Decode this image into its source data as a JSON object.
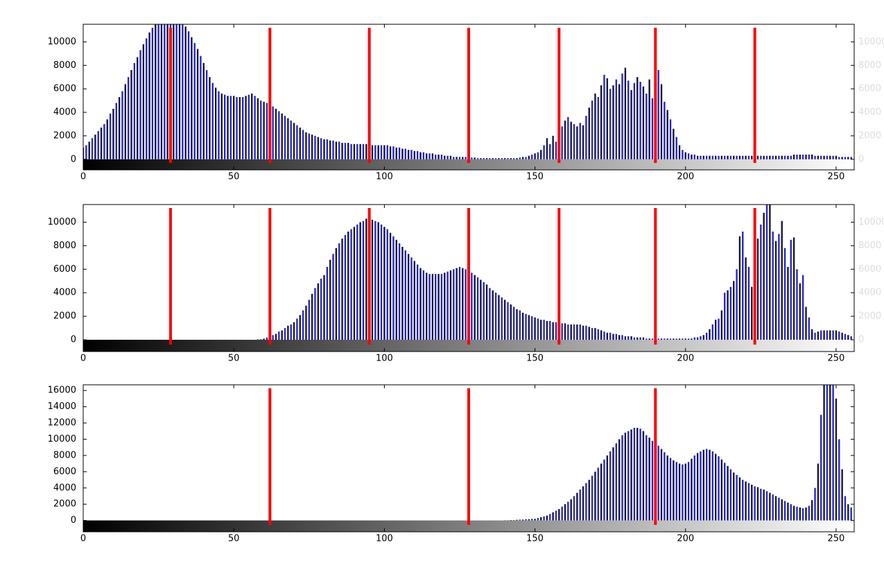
{
  "chart_data": [
    {
      "type": "bar",
      "xlim": [
        0,
        256
      ],
      "ylim": [
        -900,
        11500
      ],
      "xticks": [
        0,
        50,
        100,
        150,
        200,
        250
      ],
      "yticks": [
        0,
        2000,
        4000,
        6000,
        8000,
        10000
      ],
      "colors": [
        "#15153f",
        "#2626c8"
      ],
      "markers": [
        29,
        62,
        95,
        128,
        158,
        190,
        223
      ],
      "marker_color": "#ff0000",
      "values": [
        1000,
        1200,
        1500,
        1800,
        2100,
        2400,
        2700,
        3000,
        3400,
        3900,
        4300,
        4800,
        5300,
        5800,
        6400,
        7000,
        7600,
        8200,
        8700,
        9300,
        9800,
        10300,
        10800,
        11200,
        11500,
        11500,
        11500,
        11500,
        11500,
        11500,
        11500,
        11500,
        11500,
        11500,
        11300,
        10900,
        10400,
        9900,
        9400,
        8800,
        8200,
        7600,
        7000,
        6500,
        6100,
        5800,
        5600,
        5500,
        5400,
        5400,
        5400,
        5300,
        5300,
        5300,
        5400,
        5500,
        5600,
        5400,
        5200,
        5000,
        4900,
        4800,
        4700,
        4500,
        4300,
        4100,
        3900,
        3700,
        3500,
        3300,
        3100,
        2900,
        2700,
        2500,
        2300,
        2200,
        2100,
        2000,
        1900,
        1800,
        1700,
        1700,
        1600,
        1600,
        1500,
        1500,
        1400,
        1400,
        1400,
        1300,
        1300,
        1300,
        1300,
        1300,
        1300,
        1200,
        1200,
        1200,
        1200,
        1200,
        1200,
        1200,
        1100,
        1100,
        1000,
        1000,
        900,
        900,
        800,
        800,
        700,
        700,
        600,
        600,
        500,
        500,
        500,
        400,
        400,
        400,
        300,
        300,
        300,
        200,
        200,
        200,
        200,
        200,
        200,
        150,
        150,
        100,
        100,
        100,
        100,
        100,
        100,
        100,
        100,
        100,
        100,
        100,
        100,
        100,
        100,
        150,
        200,
        200,
        300,
        400,
        500,
        600,
        800,
        1200,
        1800,
        1300,
        2000,
        1500,
        2400,
        2800,
        3300,
        3600,
        3200,
        3000,
        2800,
        3100,
        2900,
        3700,
        4400,
        5000,
        5600,
        5300,
        6300,
        7200,
        6900,
        6000,
        6300,
        6800,
        6400,
        7300,
        7800,
        6700,
        5900,
        6500,
        7000,
        6600,
        6200,
        5600,
        6800,
        5200,
        7800,
        7600,
        6400,
        4900,
        4200,
        3400,
        2600,
        1900,
        1200,
        800,
        600,
        500,
        400,
        400,
        300,
        300,
        300,
        300,
        300,
        300,
        300,
        300,
        300,
        300,
        300,
        300,
        300,
        300,
        300,
        300,
        300,
        300,
        300,
        300,
        300,
        300,
        300,
        300,
        300,
        300,
        300,
        300,
        300,
        300,
        300,
        300,
        400,
        400,
        400,
        400,
        400,
        400,
        400,
        300,
        300,
        300,
        300,
        300,
        300,
        300,
        300,
        200,
        200,
        200,
        200,
        200
      ]
    },
    {
      "type": "bar",
      "xlim": [
        0,
        256
      ],
      "ylim": [
        -1000,
        11500
      ],
      "xticks": [
        0,
        50,
        100,
        150,
        200,
        250
      ],
      "yticks": [
        0,
        2000,
        4000,
        6000,
        8000,
        10000
      ],
      "colors": [
        "#15153f",
        "#2626c8"
      ],
      "markers": [
        29,
        62,
        95,
        128,
        158,
        190,
        223
      ],
      "marker_color": "#ff0000",
      "values": [
        0,
        0,
        0,
        0,
        0,
        0,
        0,
        0,
        0,
        0,
        0,
        0,
        0,
        0,
        0,
        0,
        0,
        0,
        0,
        0,
        0,
        0,
        0,
        0,
        0,
        0,
        0,
        0,
        0,
        0,
        0,
        0,
        0,
        0,
        0,
        0,
        0,
        0,
        0,
        0,
        0,
        0,
        0,
        0,
        0,
        0,
        0,
        0,
        0,
        0,
        0,
        0,
        0,
        0,
        0,
        0,
        0,
        0,
        30,
        50,
        100,
        200,
        300,
        400,
        500,
        700,
        800,
        1000,
        1200,
        1300,
        1500,
        1800,
        2100,
        2500,
        2900,
        3400,
        3900,
        4400,
        4800,
        5200,
        5500,
        6200,
        6800,
        7300,
        7800,
        8200,
        8600,
        8900,
        9200,
        9400,
        9600,
        9800,
        10000,
        10100,
        10300,
        10300,
        10200,
        10100,
        10000,
        9800,
        9600,
        9400,
        9100,
        8800,
        8500,
        8200,
        7900,
        7600,
        7300,
        7000,
        6700,
        6400,
        6100,
        5900,
        5700,
        5600,
        5600,
        5600,
        5600,
        5600,
        5700,
        5800,
        5900,
        6000,
        6100,
        6200,
        6100,
        6000,
        5800,
        5700,
        5500,
        5300,
        5100,
        4900,
        4700,
        4400,
        4200,
        4000,
        3800,
        3600,
        3400,
        3200,
        3000,
        2800,
        2600,
        2500,
        2300,
        2200,
        2100,
        2000,
        1900,
        1800,
        1700,
        1700,
        1600,
        1600,
        1500,
        1500,
        1400,
        1400,
        1400,
        1300,
        1300,
        1300,
        1300,
        1300,
        1200,
        1200,
        1100,
        1000,
        1000,
        900,
        800,
        700,
        600,
        600,
        500,
        500,
        400,
        400,
        300,
        300,
        300,
        200,
        200,
        200,
        200,
        100,
        100,
        100,
        100,
        100,
        100,
        100,
        100,
        100,
        100,
        100,
        100,
        100,
        100,
        100,
        100,
        200,
        200,
        300,
        400,
        600,
        900,
        1300,
        1700,
        1800,
        2500,
        4000,
        4200,
        4500,
        5000,
        6000,
        8800,
        9200,
        7000,
        6200,
        4500,
        7800,
        8600,
        9800,
        10800,
        11500,
        11500,
        9200,
        8400,
        9000,
        10100,
        7800,
        6200,
        8500,
        8700,
        6000,
        4800,
        5500,
        2800,
        1900,
        900,
        600,
        700,
        800,
        800,
        800,
        800,
        800,
        800,
        700,
        600,
        500,
        400,
        300
      ]
    },
    {
      "type": "bar",
      "xlim": [
        0,
        256
      ],
      "ylim": [
        -1400,
        16700
      ],
      "xticks": [
        0,
        50,
        100,
        150,
        200,
        250
      ],
      "yticks": [
        0,
        2000,
        4000,
        6000,
        8000,
        10000,
        12000,
        14000,
        16000
      ],
      "colors": [
        "#15153f",
        "#2626c8"
      ],
      "markers": [
        62,
        128,
        190
      ],
      "marker_color": "#ff0000",
      "values": [
        0,
        0,
        0,
        0,
        0,
        0,
        0,
        0,
        0,
        0,
        0,
        0,
        0,
        0,
        0,
        0,
        0,
        0,
        0,
        0,
        0,
        0,
        0,
        0,
        0,
        0,
        0,
        0,
        0,
        0,
        0,
        0,
        0,
        0,
        0,
        0,
        0,
        0,
        0,
        0,
        0,
        0,
        0,
        0,
        0,
        0,
        0,
        0,
        0,
        0,
        0,
        0,
        0,
        0,
        0,
        0,
        0,
        0,
        0,
        0,
        0,
        0,
        0,
        0,
        0,
        0,
        0,
        0,
        0,
        0,
        0,
        0,
        0,
        0,
        0,
        0,
        0,
        0,
        0,
        0,
        0,
        0,
        0,
        0,
        0,
        0,
        0,
        0,
        0,
        0,
        0,
        0,
        0,
        0,
        0,
        0,
        0,
        0,
        0,
        0,
        0,
        0,
        0,
        0,
        0,
        0,
        0,
        0,
        0,
        0,
        0,
        0,
        0,
        0,
        0,
        0,
        0,
        0,
        0,
        0,
        0,
        0,
        0,
        0,
        0,
        0,
        0,
        0,
        0,
        0,
        0,
        0,
        0,
        0,
        0,
        0,
        0,
        0,
        0,
        0,
        20,
        30,
        50,
        50,
        80,
        100,
        100,
        150,
        150,
        200,
        200,
        300,
        400,
        500,
        600,
        800,
        1000,
        1200,
        1400,
        1700,
        2000,
        2300,
        2600,
        3000,
        3400,
        3800,
        4200,
        4600,
        5000,
        5500,
        6000,
        6500,
        7000,
        7500,
        8000,
        8500,
        9000,
        9500,
        10000,
        10500,
        10800,
        11000,
        11200,
        11400,
        11400,
        11300,
        11000,
        10500,
        10200,
        9800,
        9500,
        9200,
        8800,
        8400,
        8000,
        7700,
        7400,
        7200,
        7000,
        6900,
        7000,
        7200,
        7600,
        8000,
        8300,
        8500,
        8700,
        8800,
        8700,
        8500,
        8200,
        7900,
        7500,
        7100,
        6700,
        6300,
        5900,
        5600,
        5300,
        5000,
        4800,
        4600,
        4400,
        4200,
        4100,
        3900,
        3800,
        3600,
        3400,
        3200,
        3000,
        2800,
        2600,
        2400,
        2200,
        2000,
        1800,
        1700,
        1600,
        1500,
        1600,
        1800,
        2500,
        4000,
        7000,
        13000,
        16700,
        16700,
        16700,
        16700,
        15000,
        10000,
        6300,
        3000,
        2000,
        1600
      ]
    }
  ]
}
